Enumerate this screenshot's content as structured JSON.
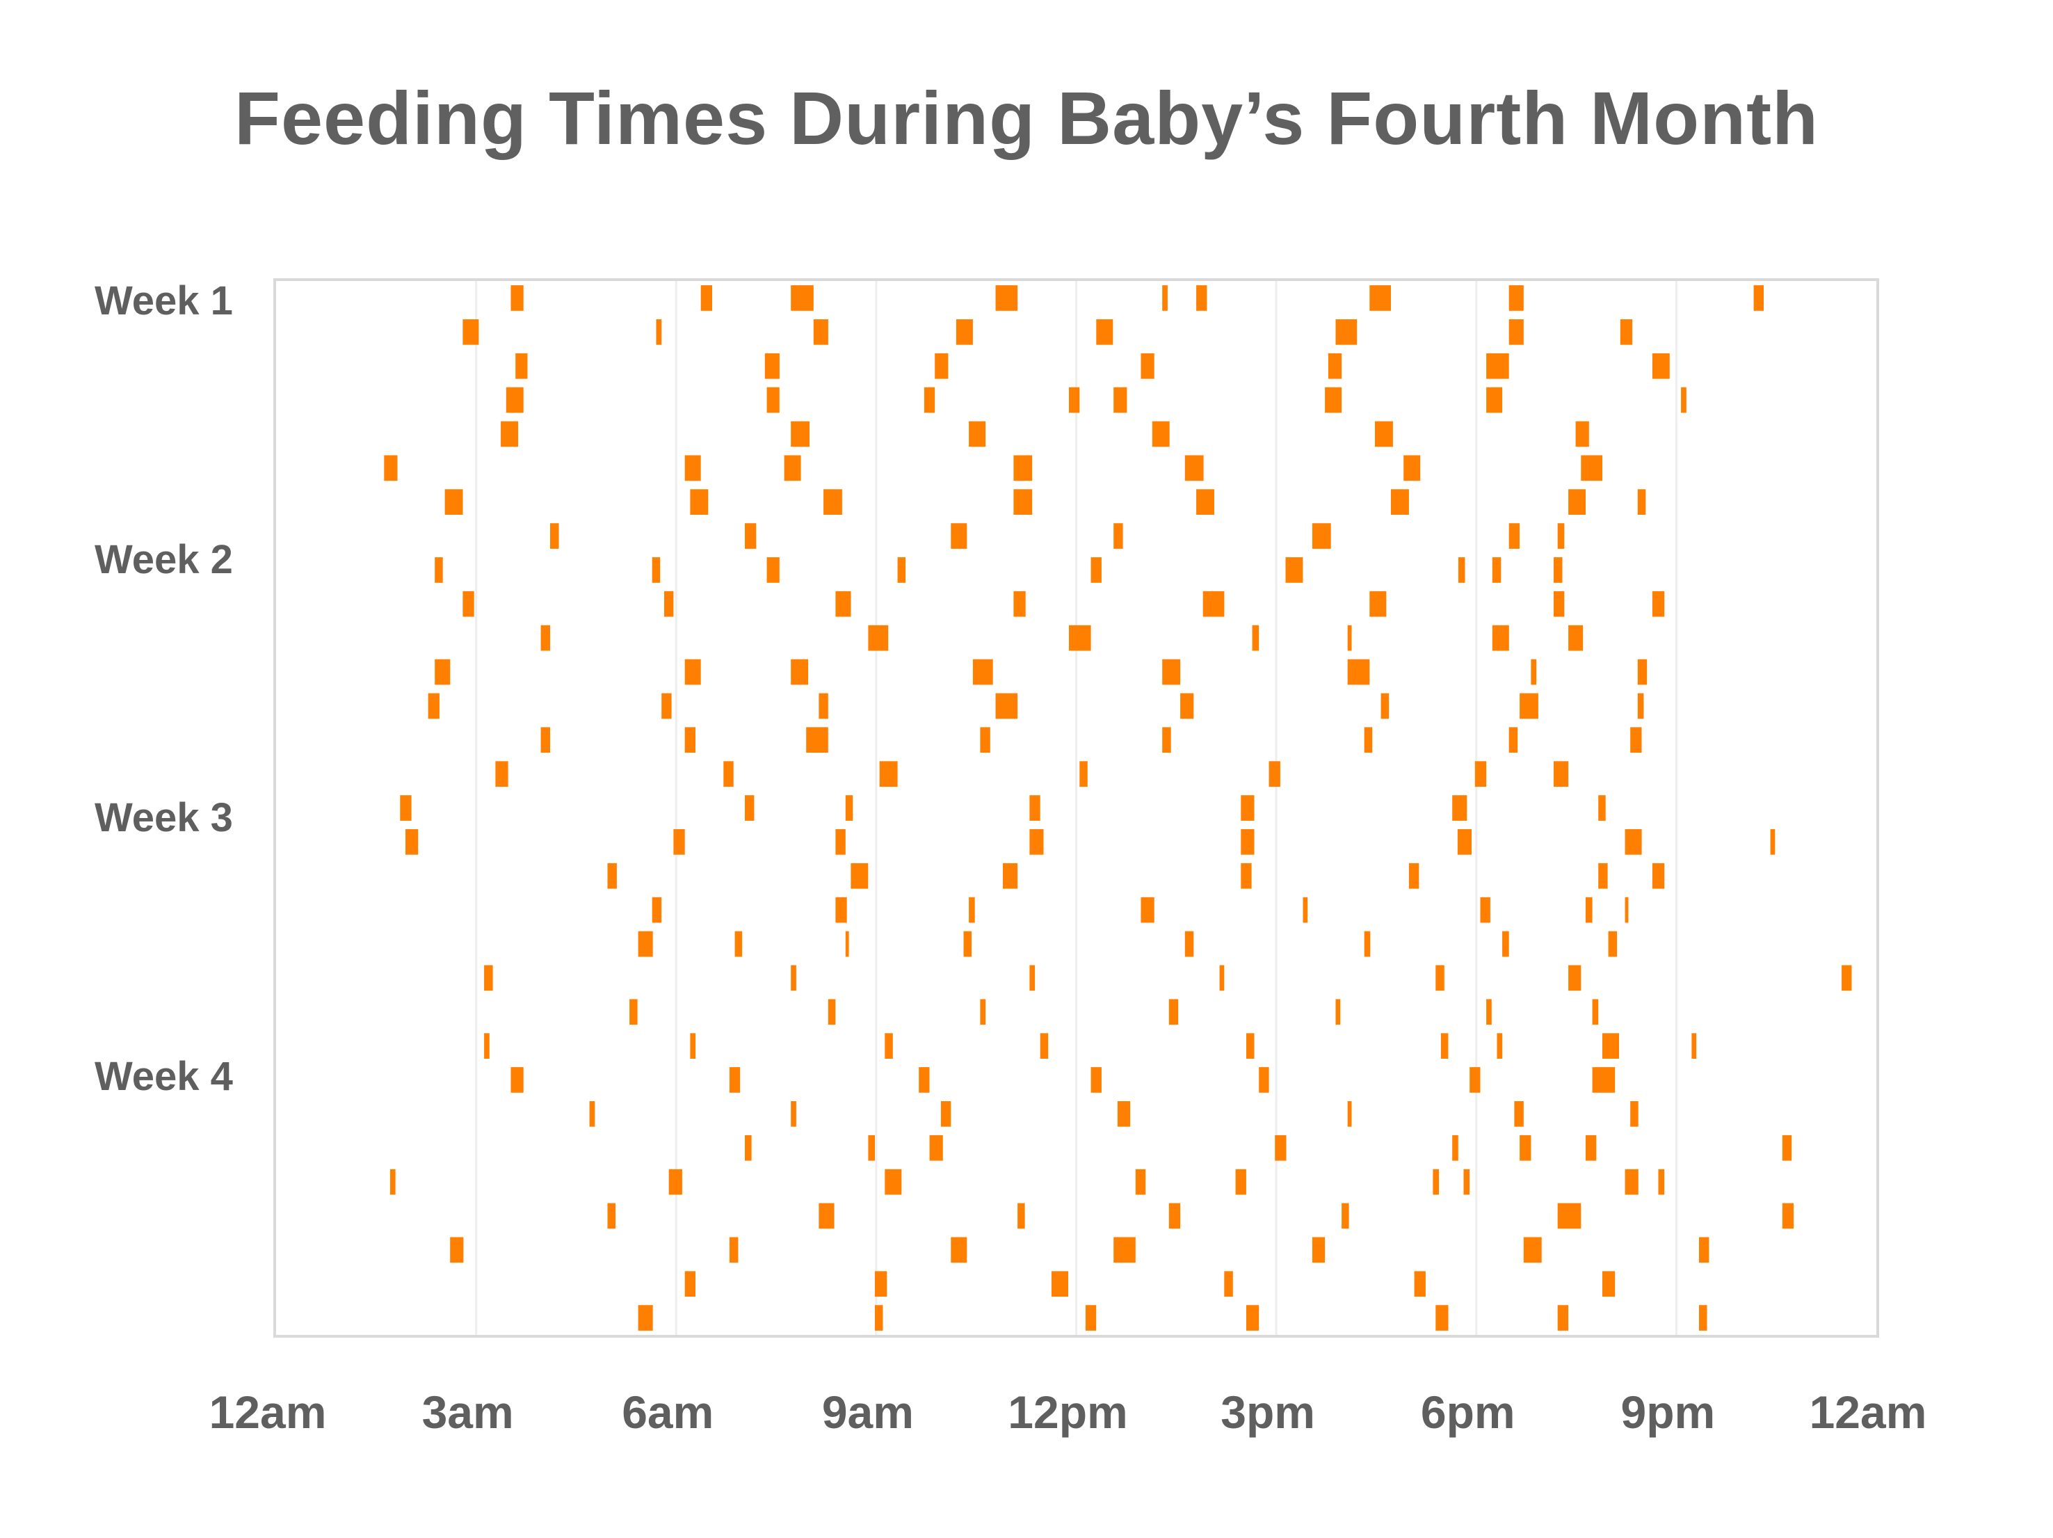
{
  "chart_data": {
    "type": "timeline",
    "title": "Feeding Times During Baby’s Fourth Month",
    "xlabel": "",
    "ylabel": "",
    "x_unit": "hour of day",
    "xlim": [
      0,
      24
    ],
    "x_ticks": [
      {
        "value": 0,
        "label": "12am"
      },
      {
        "value": 3,
        "label": "3am"
      },
      {
        "value": 6,
        "label": "6am"
      },
      {
        "value": 9,
        "label": "9am"
      },
      {
        "value": 12,
        "label": "12pm"
      },
      {
        "value": 15,
        "label": "3pm"
      },
      {
        "value": 18,
        "label": "6pm"
      },
      {
        "value": 21,
        "label": "9pm"
      },
      {
        "value": 24,
        "label": "12am"
      }
    ],
    "grid": "vertical",
    "row_count": 31,
    "y_labels": [
      {
        "label": "Week 1",
        "row": 1
      },
      {
        "label": "Week 2",
        "row": 8.6
      },
      {
        "label": "Week 3",
        "row": 16.2
      },
      {
        "label": "Week 4",
        "row": 23.8
      }
    ],
    "bar_color": "#ff7f00",
    "days": [
      {
        "day": 1,
        "feedings": [
          [
            3.52,
            3.71
          ],
          [
            6.37,
            6.54
          ],
          [
            7.72,
            8.06
          ],
          [
            10.79,
            11.12
          ],
          [
            13.29,
            13.37
          ],
          [
            13.8,
            13.96
          ],
          [
            16.4,
            16.72
          ],
          [
            18.49,
            18.71
          ],
          [
            22.16,
            22.31
          ]
        ]
      },
      {
        "day": 2,
        "feedings": [
          [
            2.8,
            3.04
          ],
          [
            5.7,
            5.78
          ],
          [
            8.06,
            8.28
          ],
          [
            10.2,
            10.45
          ],
          [
            12.3,
            12.55
          ],
          [
            15.89,
            16.21
          ],
          [
            18.49,
            18.71
          ],
          [
            20.16,
            20.34
          ]
        ]
      },
      {
        "day": 3,
        "feedings": [
          [
            3.59,
            3.77
          ],
          [
            7.33,
            7.55
          ],
          [
            9.88,
            10.08
          ],
          [
            12.97,
            13.17
          ],
          [
            15.78,
            15.98
          ],
          [
            18.15,
            18.49
          ],
          [
            20.64,
            20.9
          ]
        ]
      },
      {
        "day": 4,
        "feedings": [
          [
            3.45,
            3.71
          ],
          [
            7.36,
            7.55
          ],
          [
            9.72,
            9.88
          ],
          [
            11.89,
            12.05
          ],
          [
            12.56,
            12.76
          ],
          [
            15.73,
            15.98
          ],
          [
            18.15,
            18.39
          ],
          [
            21.07,
            21.15
          ]
        ]
      },
      {
        "day": 5,
        "feedings": [
          [
            3.37,
            3.63
          ],
          [
            7.72,
            8.0
          ],
          [
            10.39,
            10.64
          ],
          [
            13.14,
            13.4
          ],
          [
            16.48,
            16.75
          ],
          [
            19.49,
            19.69
          ]
        ]
      },
      {
        "day": 6,
        "feedings": [
          [
            1.62,
            1.82
          ],
          [
            6.13,
            6.37
          ],
          [
            7.62,
            7.87
          ],
          [
            11.06,
            11.34
          ],
          [
            13.63,
            13.91
          ],
          [
            16.91,
            17.16
          ],
          [
            19.57,
            19.89
          ]
        ]
      },
      {
        "day": 7,
        "feedings": [
          [
            2.53,
            2.8
          ],
          [
            6.21,
            6.48
          ],
          [
            8.21,
            8.49
          ],
          [
            11.06,
            11.34
          ],
          [
            13.8,
            14.07
          ],
          [
            16.72,
            16.99
          ],
          [
            19.38,
            19.64
          ],
          [
            20.42,
            20.54
          ]
        ]
      },
      {
        "day": 8,
        "feedings": [
          [
            4.11,
            4.24
          ],
          [
            7.03,
            7.2
          ],
          [
            10.12,
            10.36
          ],
          [
            12.56,
            12.7
          ],
          [
            15.54,
            15.82
          ],
          [
            18.49,
            18.65
          ],
          [
            19.22,
            19.32
          ]
        ]
      },
      {
        "day": 9,
        "feedings": [
          [
            2.38,
            2.5
          ],
          [
            5.64,
            5.76
          ],
          [
            7.36,
            7.55
          ],
          [
            9.32,
            9.44
          ],
          [
            12.22,
            12.38
          ],
          [
            15.14,
            15.4
          ],
          [
            17.73,
            17.83
          ],
          [
            18.24,
            18.37
          ],
          [
            19.16,
            19.29
          ]
        ]
      },
      {
        "day": 10,
        "feedings": [
          [
            2.8,
            2.97
          ],
          [
            5.82,
            5.96
          ],
          [
            8.39,
            8.62
          ],
          [
            11.06,
            11.24
          ],
          [
            13.9,
            14.22
          ],
          [
            16.4,
            16.65
          ],
          [
            19.16,
            19.32
          ],
          [
            20.64,
            20.82
          ]
        ]
      },
      {
        "day": 11,
        "feedings": [
          [
            3.97,
            4.11
          ],
          [
            8.88,
            9.18
          ],
          [
            11.89,
            12.22
          ],
          [
            14.64,
            14.74
          ],
          [
            16.07,
            16.13
          ],
          [
            18.24,
            18.49
          ],
          [
            19.38,
            19.6
          ]
        ]
      },
      {
        "day": 12,
        "feedings": [
          [
            2.38,
            2.61
          ],
          [
            6.13,
            6.37
          ],
          [
            7.72,
            7.98
          ],
          [
            10.45,
            10.75
          ],
          [
            13.29,
            13.56
          ],
          [
            16.07,
            16.4
          ],
          [
            18.82,
            18.9
          ],
          [
            20.42,
            20.56
          ]
        ]
      },
      {
        "day": 13,
        "feedings": [
          [
            2.28,
            2.45
          ],
          [
            5.78,
            5.93
          ],
          [
            8.14,
            8.28
          ],
          [
            10.79,
            11.12
          ],
          [
            13.56,
            13.76
          ],
          [
            16.57,
            16.69
          ],
          [
            18.65,
            18.93
          ],
          [
            20.42,
            20.51
          ]
        ]
      },
      {
        "day": 14,
        "feedings": [
          [
            3.97,
            4.11
          ],
          [
            6.13,
            6.29
          ],
          [
            7.95,
            8.28
          ],
          [
            10.56,
            10.71
          ],
          [
            13.29,
            13.42
          ],
          [
            16.32,
            16.44
          ],
          [
            18.49,
            18.62
          ],
          [
            20.31,
            20.48
          ]
        ]
      },
      {
        "day": 15,
        "feedings": [
          [
            3.29,
            3.48
          ],
          [
            6.71,
            6.86
          ],
          [
            9.05,
            9.32
          ],
          [
            12.05,
            12.17
          ],
          [
            14.89,
            15.06
          ],
          [
            17.98,
            18.15
          ],
          [
            19.16,
            19.38
          ]
        ]
      },
      {
        "day": 16,
        "feedings": [
          [
            1.86,
            2.03
          ],
          [
            7.03,
            7.17
          ],
          [
            8.54,
            8.65
          ],
          [
            11.3,
            11.46
          ],
          [
            14.47,
            14.67
          ],
          [
            17.64,
            17.86
          ],
          [
            19.83,
            19.94
          ]
        ]
      },
      {
        "day": 17,
        "feedings": [
          [
            1.94,
            2.13
          ],
          [
            5.96,
            6.13
          ],
          [
            8.39,
            8.54
          ],
          [
            11.3,
            11.51
          ],
          [
            14.47,
            14.67
          ],
          [
            17.72,
            17.93
          ],
          [
            20.23,
            20.48
          ],
          [
            22.41,
            22.48
          ]
        ]
      },
      {
        "day": 18,
        "feedings": [
          [
            4.97,
            5.11
          ],
          [
            8.62,
            8.88
          ],
          [
            10.9,
            11.12
          ],
          [
            14.47,
            14.63
          ],
          [
            16.99,
            17.14
          ],
          [
            19.83,
            19.97
          ],
          [
            20.64,
            20.82
          ]
        ]
      },
      {
        "day": 19,
        "feedings": [
          [
            5.64,
            5.78
          ],
          [
            8.39,
            8.56
          ],
          [
            10.39,
            10.48
          ],
          [
            12.97,
            13.17
          ],
          [
            15.4,
            15.47
          ],
          [
            18.06,
            18.21
          ],
          [
            19.64,
            19.74
          ],
          [
            20.23,
            20.28
          ]
        ]
      },
      {
        "day": 20,
        "feedings": [
          [
            5.43,
            5.65
          ],
          [
            6.88,
            6.99
          ],
          [
            8.54,
            8.59
          ],
          [
            10.31,
            10.43
          ],
          [
            13.63,
            13.76
          ],
          [
            16.32,
            16.41
          ],
          [
            18.39,
            18.49
          ],
          [
            19.98,
            20.11
          ]
        ]
      },
      {
        "day": 21,
        "feedings": [
          [
            3.12,
            3.25
          ],
          [
            7.72,
            7.8
          ],
          [
            11.3,
            11.38
          ],
          [
            14.15,
            14.22
          ],
          [
            17.39,
            17.52
          ],
          [
            19.38,
            19.57
          ],
          [
            23.48,
            23.63
          ]
        ]
      },
      {
        "day": 22,
        "feedings": [
          [
            5.3,
            5.42
          ],
          [
            8.28,
            8.39
          ],
          [
            10.56,
            10.64
          ],
          [
            13.39,
            13.53
          ],
          [
            15.89,
            15.96
          ],
          [
            18.15,
            18.23
          ],
          [
            19.74,
            19.83
          ]
        ]
      },
      {
        "day": 23,
        "feedings": [
          [
            3.12,
            3.2
          ],
          [
            6.21,
            6.29
          ],
          [
            9.13,
            9.25
          ],
          [
            11.46,
            11.58
          ],
          [
            14.55,
            14.67
          ],
          [
            17.47,
            17.58
          ],
          [
            18.31,
            18.39
          ],
          [
            19.89,
            20.14
          ],
          [
            21.23,
            21.3
          ]
        ]
      },
      {
        "day": 24,
        "feedings": [
          [
            3.52,
            3.71
          ],
          [
            6.8,
            6.96
          ],
          [
            9.64,
            9.8
          ],
          [
            12.22,
            12.38
          ],
          [
            14.74,
            14.89
          ],
          [
            17.9,
            18.06
          ],
          [
            19.74,
            20.08
          ]
        ]
      },
      {
        "day": 25,
        "feedings": [
          [
            4.7,
            4.78
          ],
          [
            7.72,
            7.8
          ],
          [
            9.97,
            10.12
          ],
          [
            12.62,
            12.81
          ],
          [
            16.07,
            16.13
          ],
          [
            18.57,
            18.71
          ],
          [
            20.31,
            20.43
          ]
        ]
      },
      {
        "day": 26,
        "feedings": [
          [
            7.03,
            7.13
          ],
          [
            8.88,
            8.98
          ],
          [
            9.8,
            10.0
          ],
          [
            14.98,
            15.15
          ],
          [
            17.64,
            17.73
          ],
          [
            18.65,
            18.82
          ],
          [
            19.64,
            19.8
          ],
          [
            22.59,
            22.73
          ]
        ]
      },
      {
        "day": 27,
        "feedings": [
          [
            1.71,
            1.79
          ],
          [
            5.89,
            6.09
          ],
          [
            9.13,
            9.38
          ],
          [
            12.89,
            13.04
          ],
          [
            14.39,
            14.55
          ],
          [
            17.35,
            17.44
          ],
          [
            17.81,
            17.9
          ],
          [
            20.23,
            20.43
          ],
          [
            20.73,
            20.82
          ]
        ]
      },
      {
        "day": 28,
        "feedings": [
          [
            4.97,
            5.09
          ],
          [
            8.14,
            8.37
          ],
          [
            11.12,
            11.23
          ],
          [
            13.39,
            13.56
          ],
          [
            15.98,
            16.09
          ],
          [
            19.22,
            19.57
          ],
          [
            22.59,
            22.76
          ]
        ]
      },
      {
        "day": 29,
        "feedings": [
          [
            2.61,
            2.81
          ],
          [
            6.8,
            6.93
          ],
          [
            10.12,
            10.36
          ],
          [
            12.56,
            12.89
          ],
          [
            15.54,
            15.73
          ],
          [
            18.71,
            18.98
          ],
          [
            21.34,
            21.49
          ]
        ]
      },
      {
        "day": 30,
        "feedings": [
          [
            6.13,
            6.29
          ],
          [
            8.98,
            9.16
          ],
          [
            11.63,
            11.88
          ],
          [
            14.22,
            14.35
          ],
          [
            17.07,
            17.24
          ],
          [
            19.89,
            20.08
          ]
        ]
      },
      {
        "day": 31,
        "feedings": [
          [
            5.43,
            5.65
          ],
          [
            8.98,
            9.1
          ],
          [
            12.14,
            12.3
          ],
          [
            14.55,
            14.74
          ],
          [
            17.39,
            17.58
          ],
          [
            19.22,
            19.38
          ],
          [
            21.34,
            21.46
          ]
        ]
      }
    ]
  }
}
